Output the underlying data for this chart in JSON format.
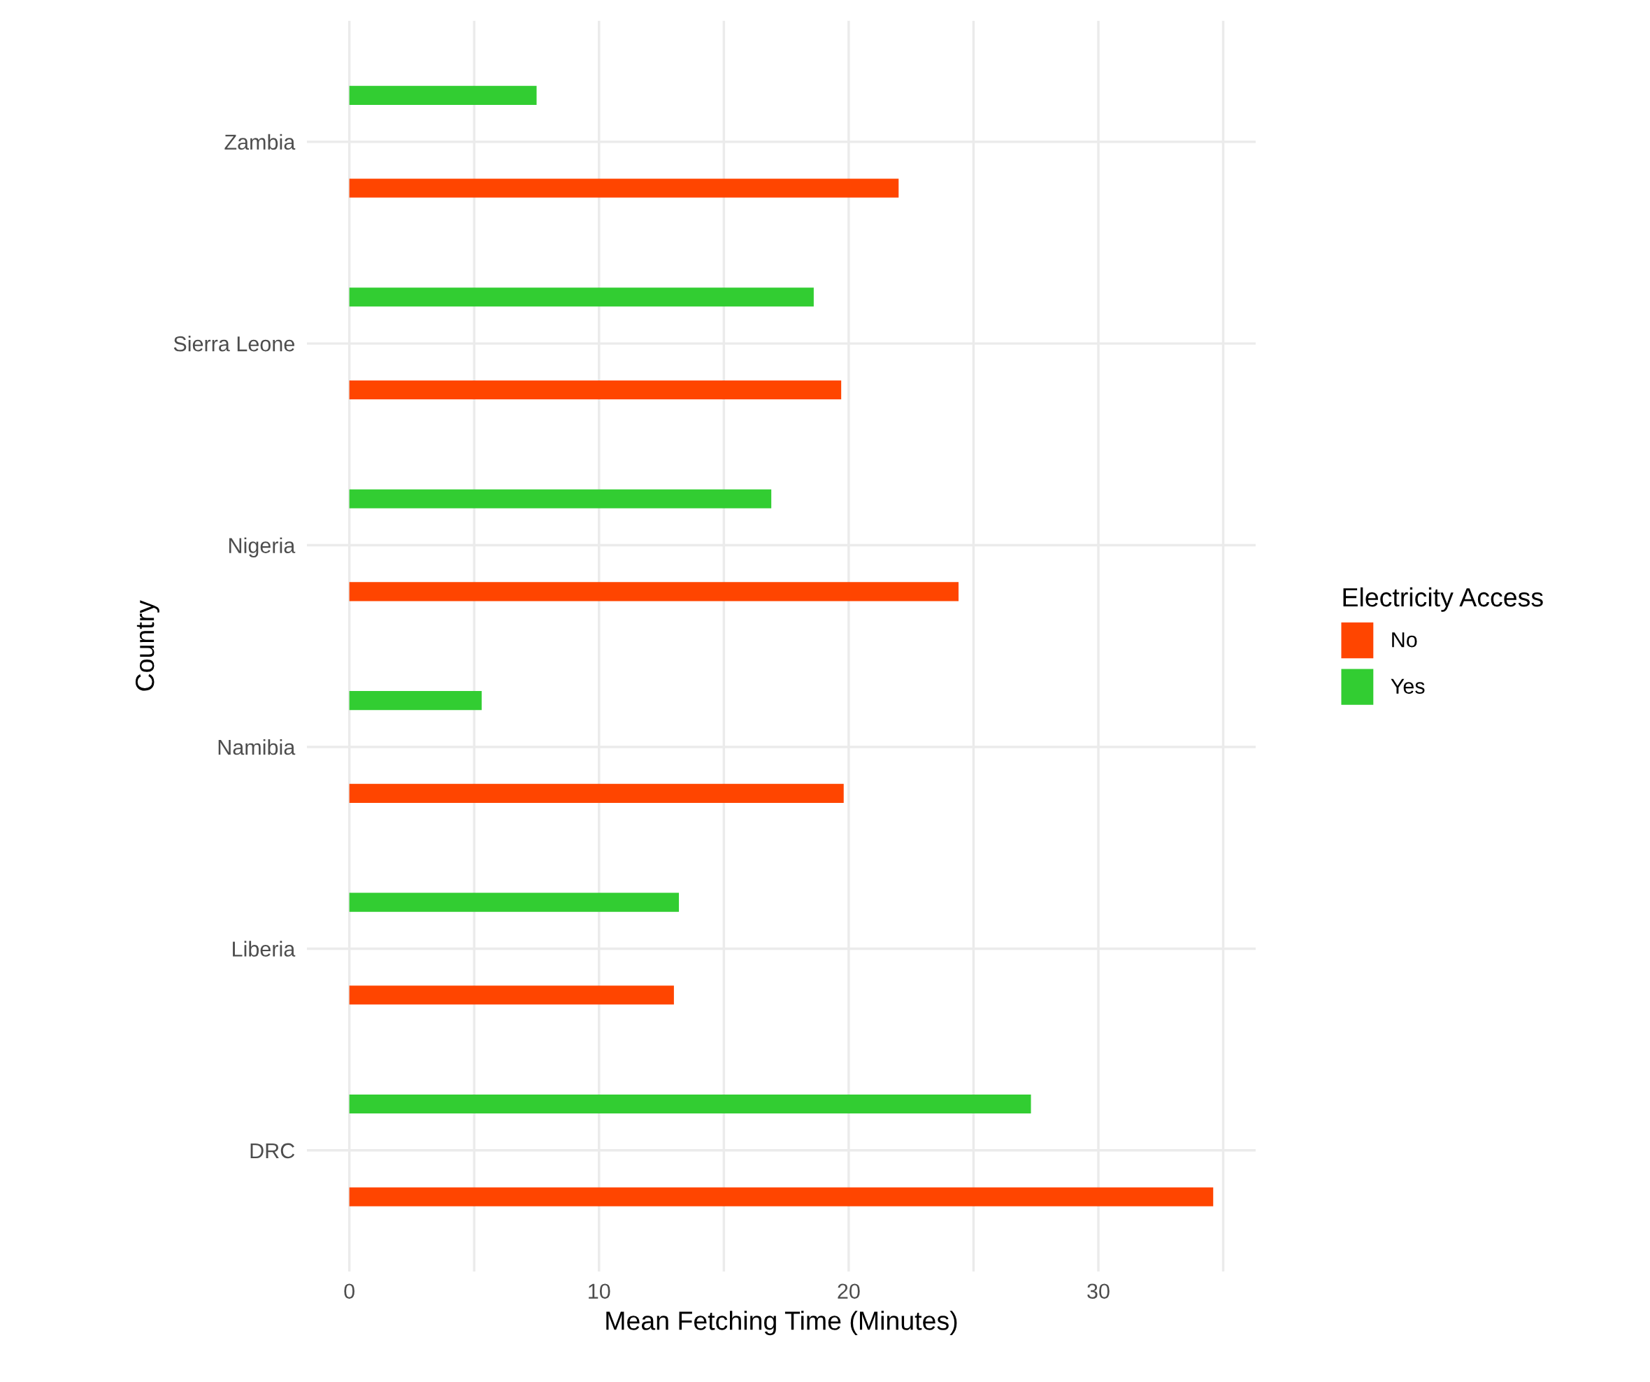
{
  "chart_data": {
    "type": "bar",
    "orientation": "horizontal",
    "xlabel": "Mean Fetching Time (Minutes)",
    "ylabel": "Country",
    "legend_title": "Electricity Access",
    "legend": "right",
    "categories": [
      "Zambia",
      "Sierra Leone",
      "Nigeria",
      "Namibia",
      "Liberia",
      "DRC"
    ],
    "series": [
      {
        "name": "No",
        "color": "#ff4500",
        "values": [
          22.0,
          19.7,
          24.4,
          19.8,
          13.0,
          34.6
        ]
      },
      {
        "name": "Yes",
        "color": "#32cd32",
        "values": [
          7.5,
          18.6,
          16.9,
          5.3,
          13.2,
          27.3
        ]
      }
    ],
    "xlim": [
      -1.7,
      36.3
    ],
    "xticks": [
      0,
      {
        "value": 5,
        "label": null
      },
      10,
      {
        "value": 15,
        "label": null
      },
      20,
      {
        "value": 25,
        "label": null
      },
      30,
      {
        "value": 35,
        "label": null
      }
    ],
    "grid": true
  }
}
